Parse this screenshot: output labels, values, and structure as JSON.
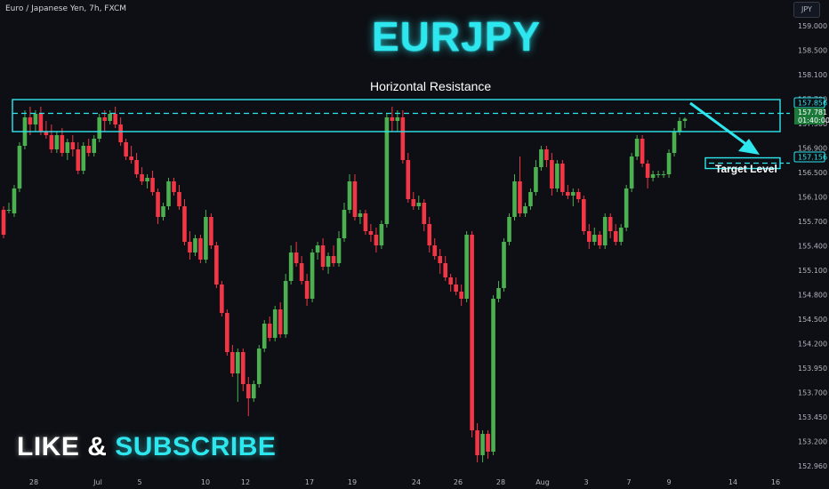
{
  "header": {
    "symbol_info": "Euro / Japanese Yen, 7h, FXCM",
    "currency": "JPY"
  },
  "title": "EURJPY",
  "annotations": {
    "resistance_label": "Horizontal Resistance",
    "target_label": "Target Level"
  },
  "cta": {
    "like": "LIKE",
    "amp": "&",
    "subscribe": "SUBSCRIBE"
  },
  "colors": {
    "up": "#4caf50",
    "down": "#f23645",
    "accent": "#2ee6ee",
    "background": "#0d0f14",
    "axis_text": "#b2b5be"
  },
  "chart_data": {
    "type": "candlestick",
    "instrument": "EURJPY",
    "timeframe": "7h",
    "ylim": [
      152.8,
      159.35
    ],
    "y_ticks": [
      "159.000",
      "158.500",
      "158.100",
      "157.700",
      "157.300",
      "156.900",
      "156.500",
      "156.100",
      "155.700",
      "155.400",
      "155.100",
      "154.800",
      "154.500",
      "154.200",
      "153.950",
      "153.700",
      "153.450",
      "153.200",
      "152.960"
    ],
    "x_ticks": [
      "28",
      "Jul",
      "5",
      "10",
      "12",
      "17",
      "19",
      "24",
      "26",
      "28",
      "Aug",
      "3",
      "7",
      "9",
      "14",
      "16"
    ],
    "price_labels": [
      {
        "text": "157.856",
        "value": 157.856,
        "style": "box"
      },
      {
        "text": "157.781",
        "value": 157.781,
        "style": "green"
      },
      {
        "text": "01:40:00",
        "value": 157.68,
        "style": "green"
      },
      {
        "text": "157.156",
        "value": 157.156,
        "style": "box"
      }
    ],
    "levels": {
      "resistance_line": 157.856,
      "resistance_zone": [
        157.6,
        158.05
      ],
      "target": 157.156
    },
    "candles": [
      {
        "o": 156.5,
        "h": 156.55,
        "l": 156.1,
        "c": 156.15
      },
      {
        "o": 156.5,
        "h": 156.6,
        "l": 156.45,
        "c": 156.5
      },
      {
        "o": 156.45,
        "h": 156.85,
        "l": 156.4,
        "c": 156.8
      },
      {
        "o": 156.8,
        "h": 157.45,
        "l": 156.75,
        "c": 157.4
      },
      {
        "o": 157.4,
        "h": 157.9,
        "l": 157.35,
        "c": 157.8
      },
      {
        "o": 157.8,
        "h": 157.95,
        "l": 157.55,
        "c": 157.7
      },
      {
        "o": 157.7,
        "h": 157.9,
        "l": 157.6,
        "c": 157.85
      },
      {
        "o": 157.85,
        "h": 157.95,
        "l": 157.55,
        "c": 157.6
      },
      {
        "o": 157.6,
        "h": 157.75,
        "l": 157.5,
        "c": 157.55
      },
      {
        "o": 157.55,
        "h": 157.7,
        "l": 157.3,
        "c": 157.35
      },
      {
        "o": 157.35,
        "h": 157.6,
        "l": 157.3,
        "c": 157.55
      },
      {
        "o": 157.55,
        "h": 157.65,
        "l": 157.25,
        "c": 157.3
      },
      {
        "o": 157.3,
        "h": 157.5,
        "l": 157.2,
        "c": 157.45
      },
      {
        "o": 157.45,
        "h": 157.55,
        "l": 157.25,
        "c": 157.35
      },
      {
        "o": 157.35,
        "h": 157.45,
        "l": 157.0,
        "c": 157.05
      },
      {
        "o": 157.05,
        "h": 157.45,
        "l": 157.0,
        "c": 157.4
      },
      {
        "o": 157.4,
        "h": 157.5,
        "l": 157.25,
        "c": 157.3
      },
      {
        "o": 157.3,
        "h": 157.55,
        "l": 157.25,
        "c": 157.5
      },
      {
        "o": 157.5,
        "h": 157.85,
        "l": 157.45,
        "c": 157.8
      },
      {
        "o": 157.8,
        "h": 157.9,
        "l": 157.6,
        "c": 157.75
      },
      {
        "o": 157.75,
        "h": 157.9,
        "l": 157.7,
        "c": 157.85
      },
      {
        "o": 157.85,
        "h": 157.95,
        "l": 157.65,
        "c": 157.7
      },
      {
        "o": 157.7,
        "h": 157.8,
        "l": 157.4,
        "c": 157.45
      },
      {
        "o": 157.45,
        "h": 157.5,
        "l": 157.2,
        "c": 157.25
      },
      {
        "o": 157.25,
        "h": 157.4,
        "l": 157.15,
        "c": 157.2
      },
      {
        "o": 157.2,
        "h": 157.3,
        "l": 156.95,
        "c": 157.0
      },
      {
        "o": 157.0,
        "h": 157.1,
        "l": 156.85,
        "c": 156.9
      },
      {
        "o": 156.9,
        "h": 157.0,
        "l": 156.8,
        "c": 156.95
      },
      {
        "o": 156.95,
        "h": 157.05,
        "l": 156.7,
        "c": 156.75
      },
      {
        "o": 156.75,
        "h": 156.8,
        "l": 156.3,
        "c": 156.4
      },
      {
        "o": 156.4,
        "h": 156.6,
        "l": 156.35,
        "c": 156.55
      },
      {
        "o": 156.55,
        "h": 156.95,
        "l": 156.5,
        "c": 156.9
      },
      {
        "o": 156.9,
        "h": 156.95,
        "l": 156.7,
        "c": 156.75
      },
      {
        "o": 156.75,
        "h": 156.85,
        "l": 156.5,
        "c": 156.55
      },
      {
        "o": 156.55,
        "h": 156.65,
        "l": 156.0,
        "c": 156.05
      },
      {
        "o": 156.05,
        "h": 156.2,
        "l": 155.8,
        "c": 155.9
      },
      {
        "o": 155.9,
        "h": 156.15,
        "l": 155.85,
        "c": 156.1
      },
      {
        "o": 156.1,
        "h": 156.15,
        "l": 155.75,
        "c": 155.8
      },
      {
        "o": 155.8,
        "h": 156.5,
        "l": 155.75,
        "c": 156.4
      },
      {
        "o": 156.4,
        "h": 156.45,
        "l": 155.95,
        "c": 156.0
      },
      {
        "o": 156.0,
        "h": 156.05,
        "l": 155.4,
        "c": 155.45
      },
      {
        "o": 155.45,
        "h": 155.5,
        "l": 155.0,
        "c": 155.05
      },
      {
        "o": 155.05,
        "h": 155.1,
        "l": 154.45,
        "c": 154.5
      },
      {
        "o": 154.5,
        "h": 154.6,
        "l": 154.15,
        "c": 154.2
      },
      {
        "o": 154.2,
        "h": 154.55,
        "l": 153.8,
        "c": 154.5
      },
      {
        "o": 154.5,
        "h": 154.55,
        "l": 153.95,
        "c": 154.05
      },
      {
        "o": 154.05,
        "h": 154.15,
        "l": 153.6,
        "c": 153.85
      },
      {
        "o": 153.85,
        "h": 154.1,
        "l": 153.8,
        "c": 154.05
      },
      {
        "o": 154.05,
        "h": 154.6,
        "l": 154.0,
        "c": 154.55
      },
      {
        "o": 154.55,
        "h": 154.95,
        "l": 154.5,
        "c": 154.9
      },
      {
        "o": 154.9,
        "h": 155.0,
        "l": 154.65,
        "c": 154.7
      },
      {
        "o": 154.7,
        "h": 155.15,
        "l": 154.65,
        "c": 155.1
      },
      {
        "o": 155.1,
        "h": 155.2,
        "l": 154.7,
        "c": 154.75
      },
      {
        "o": 154.75,
        "h": 155.6,
        "l": 154.7,
        "c": 155.5
      },
      {
        "o": 155.5,
        "h": 156.0,
        "l": 155.45,
        "c": 155.9
      },
      {
        "o": 155.9,
        "h": 156.05,
        "l": 155.7,
        "c": 155.75
      },
      {
        "o": 155.75,
        "h": 155.85,
        "l": 155.45,
        "c": 155.5
      },
      {
        "o": 155.5,
        "h": 155.6,
        "l": 155.15,
        "c": 155.25
      },
      {
        "o": 155.25,
        "h": 155.95,
        "l": 155.2,
        "c": 155.9
      },
      {
        "o": 155.9,
        "h": 156.05,
        "l": 155.8,
        "c": 156.0
      },
      {
        "o": 156.0,
        "h": 156.1,
        "l": 155.65,
        "c": 155.7
      },
      {
        "o": 155.7,
        "h": 155.9,
        "l": 155.6,
        "c": 155.85
      },
      {
        "o": 155.85,
        "h": 156.0,
        "l": 155.7,
        "c": 155.75
      },
      {
        "o": 155.75,
        "h": 156.2,
        "l": 155.7,
        "c": 156.1
      },
      {
        "o": 156.1,
        "h": 156.6,
        "l": 156.05,
        "c": 156.5
      },
      {
        "o": 156.5,
        "h": 157.0,
        "l": 156.45,
        "c": 156.9
      },
      {
        "o": 156.9,
        "h": 157.0,
        "l": 156.35,
        "c": 156.4
      },
      {
        "o": 156.4,
        "h": 156.5,
        "l": 156.3,
        "c": 156.45
      },
      {
        "o": 156.45,
        "h": 156.5,
        "l": 156.15,
        "c": 156.2
      },
      {
        "o": 156.2,
        "h": 156.3,
        "l": 156.05,
        "c": 156.15
      },
      {
        "o": 156.15,
        "h": 156.25,
        "l": 155.9,
        "c": 156.0
      },
      {
        "o": 156.0,
        "h": 156.35,
        "l": 155.95,
        "c": 156.3
      },
      {
        "o": 156.3,
        "h": 157.85,
        "l": 156.25,
        "c": 157.8
      },
      {
        "o": 157.8,
        "h": 157.95,
        "l": 157.6,
        "c": 157.75
      },
      {
        "o": 157.75,
        "h": 157.9,
        "l": 157.6,
        "c": 157.8
      },
      {
        "o": 157.8,
        "h": 157.9,
        "l": 157.15,
        "c": 157.2
      },
      {
        "o": 157.2,
        "h": 157.3,
        "l": 156.6,
        "c": 156.65
      },
      {
        "o": 156.65,
        "h": 156.75,
        "l": 156.5,
        "c": 156.55
      },
      {
        "o": 156.55,
        "h": 156.7,
        "l": 156.5,
        "c": 156.6
      },
      {
        "o": 156.6,
        "h": 156.65,
        "l": 156.2,
        "c": 156.3
      },
      {
        "o": 156.3,
        "h": 156.4,
        "l": 155.9,
        "c": 156.0
      },
      {
        "o": 156.0,
        "h": 156.1,
        "l": 155.8,
        "c": 155.85
      },
      {
        "o": 155.85,
        "h": 155.95,
        "l": 155.6,
        "c": 155.75
      },
      {
        "o": 155.75,
        "h": 155.85,
        "l": 155.5,
        "c": 155.55
      },
      {
        "o": 155.55,
        "h": 155.6,
        "l": 155.35,
        "c": 155.45
      },
      {
        "o": 155.45,
        "h": 155.55,
        "l": 155.3,
        "c": 155.35
      },
      {
        "o": 155.35,
        "h": 155.45,
        "l": 155.15,
        "c": 155.25
      },
      {
        "o": 155.25,
        "h": 156.2,
        "l": 155.2,
        "c": 156.15
      },
      {
        "o": 156.15,
        "h": 156.2,
        "l": 153.3,
        "c": 153.4
      },
      {
        "o": 153.4,
        "h": 153.5,
        "l": 152.95,
        "c": 153.05
      },
      {
        "o": 153.05,
        "h": 153.4,
        "l": 152.95,
        "c": 153.35
      },
      {
        "o": 153.35,
        "h": 153.4,
        "l": 153.0,
        "c": 153.1
      },
      {
        "o": 153.1,
        "h": 155.3,
        "l": 153.05,
        "c": 155.25
      },
      {
        "o": 155.25,
        "h": 155.5,
        "l": 155.2,
        "c": 155.4
      },
      {
        "o": 155.4,
        "h": 156.1,
        "l": 155.35,
        "c": 156.05
      },
      {
        "o": 156.05,
        "h": 156.45,
        "l": 156.0,
        "c": 156.4
      },
      {
        "o": 156.4,
        "h": 157.0,
        "l": 156.35,
        "c": 156.9
      },
      {
        "o": 156.9,
        "h": 157.25,
        "l": 156.4,
        "c": 156.45
      },
      {
        "o": 156.45,
        "h": 156.6,
        "l": 156.4,
        "c": 156.55
      },
      {
        "o": 156.55,
        "h": 156.8,
        "l": 156.5,
        "c": 156.75
      },
      {
        "o": 156.75,
        "h": 157.2,
        "l": 156.7,
        "c": 157.1
      },
      {
        "o": 157.1,
        "h": 157.4,
        "l": 157.05,
        "c": 157.35
      },
      {
        "o": 157.35,
        "h": 157.4,
        "l": 157.1,
        "c": 157.2
      },
      {
        "o": 157.2,
        "h": 157.3,
        "l": 156.7,
        "c": 156.8
      },
      {
        "o": 156.8,
        "h": 157.2,
        "l": 156.75,
        "c": 157.15
      },
      {
        "o": 157.15,
        "h": 157.2,
        "l": 156.7,
        "c": 156.75
      },
      {
        "o": 156.75,
        "h": 156.85,
        "l": 156.65,
        "c": 156.7
      },
      {
        "o": 156.7,
        "h": 156.8,
        "l": 156.55,
        "c": 156.75
      },
      {
        "o": 156.75,
        "h": 156.8,
        "l": 156.6,
        "c": 156.65
      },
      {
        "o": 156.65,
        "h": 156.7,
        "l": 156.15,
        "c": 156.2
      },
      {
        "o": 156.2,
        "h": 156.3,
        "l": 155.95,
        "c": 156.05
      },
      {
        "o": 156.05,
        "h": 156.25,
        "l": 156.0,
        "c": 156.15
      },
      {
        "o": 156.15,
        "h": 156.2,
        "l": 155.95,
        "c": 156.0
      },
      {
        "o": 156.0,
        "h": 156.45,
        "l": 155.95,
        "c": 156.4
      },
      {
        "o": 156.4,
        "h": 156.45,
        "l": 156.1,
        "c": 156.2
      },
      {
        "o": 156.2,
        "h": 156.3,
        "l": 156.0,
        "c": 156.05
      },
      {
        "o": 156.05,
        "h": 156.3,
        "l": 156.0,
        "c": 156.25
      },
      {
        "o": 156.25,
        "h": 156.85,
        "l": 156.2,
        "c": 156.8
      },
      {
        "o": 156.8,
        "h": 157.3,
        "l": 156.75,
        "c": 157.25
      },
      {
        "o": 157.25,
        "h": 157.55,
        "l": 157.2,
        "c": 157.5
      },
      {
        "o": 157.5,
        "h": 157.55,
        "l": 157.1,
        "c": 157.15
      },
      {
        "o": 157.15,
        "h": 157.2,
        "l": 156.8,
        "c": 156.95
      },
      {
        "o": 156.95,
        "h": 157.05,
        "l": 156.9,
        "c": 157.0
      },
      {
        "o": 157.0,
        "h": 157.05,
        "l": 156.95,
        "c": 157.0
      },
      {
        "o": 157.0,
        "h": 157.05,
        "l": 156.95,
        "c": 157.0
      },
      {
        "o": 157.0,
        "h": 157.35,
        "l": 156.95,
        "c": 157.3
      },
      {
        "o": 157.3,
        "h": 157.65,
        "l": 157.25,
        "c": 157.6
      },
      {
        "o": 157.6,
        "h": 157.8,
        "l": 157.55,
        "c": 157.75
      },
      {
        "o": 157.75,
        "h": 157.8,
        "l": 157.65,
        "c": 157.78
      }
    ]
  }
}
